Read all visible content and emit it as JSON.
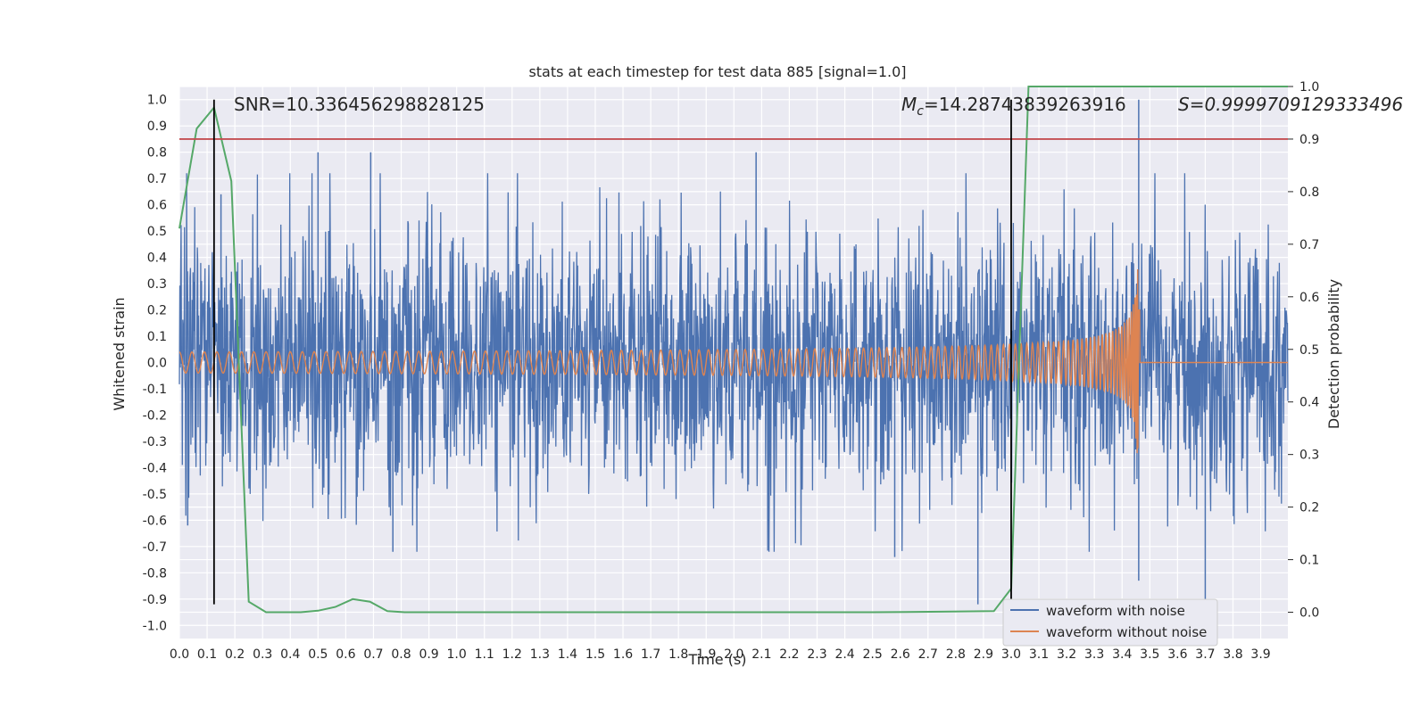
{
  "chart_data": {
    "type": "line",
    "title": "stats at each timestep for test data 885 [signal=1.0]",
    "xlabel": "Time (s)",
    "ylabel": "Whitened strain",
    "y2label": "Detection probability",
    "xlim": [
      0.0,
      3.998
    ],
    "ylim": [
      -1.05,
      1.05
    ],
    "y2lim": [
      -0.05,
      1.0
    ],
    "x_ticks": [
      0.0,
      0.1,
      0.2,
      0.3,
      0.4,
      0.5,
      0.6,
      0.7,
      0.8,
      0.9,
      1.0,
      1.1,
      1.2,
      1.3,
      1.4,
      1.5,
      1.6,
      1.7,
      1.8,
      1.9,
      2.0,
      2.1,
      2.2,
      2.3,
      2.4,
      2.5,
      2.6,
      2.7,
      2.8,
      2.9,
      3.0,
      3.1,
      3.2,
      3.3,
      3.4,
      3.5,
      3.6,
      3.7,
      3.8,
      3.9
    ],
    "x_tick_labels": [
      "0.0",
      "0.1",
      "0.2",
      "0.3",
      "0.4",
      "0.5",
      "0.6",
      "0.7",
      "0.8",
      "0.9",
      "1.0",
      "1.1",
      "1.2",
      "1.3",
      "1.4",
      "1.5",
      "1.6",
      "1.7",
      "1.8",
      "1.9",
      "2.0",
      "2.1",
      "2.2",
      "2.3",
      "2.4",
      "2.5",
      "2.6",
      "2.7",
      "2.8",
      "2.9",
      "3.0",
      "3.1",
      "3.2",
      "3.3",
      "3.4",
      "3.5",
      "3.6",
      "3.7",
      "3.8",
      "3.9"
    ],
    "y_ticks": [
      1.0,
      0.9,
      0.8,
      0.7,
      0.6,
      0.5,
      0.4,
      0.3,
      0.2,
      0.1,
      0.0,
      -0.1,
      -0.2,
      -0.3,
      -0.4,
      -0.5,
      -0.6,
      -0.7,
      -0.8,
      -0.9,
      -1.0
    ],
    "y_tick_labels": [
      "1.0",
      "0.9",
      "0.8",
      "0.7",
      "0.6",
      "0.5",
      "0.4",
      "0.3",
      "0.2",
      "0.1",
      "0.0",
      "-0.1",
      "-0.2",
      "-0.3",
      "-0.4",
      "-0.5",
      "-0.6",
      "-0.7",
      "-0.8",
      "-0.9",
      "-1.0"
    ],
    "y2_ticks": [
      1.0,
      0.9,
      0.8,
      0.7,
      0.6,
      0.5,
      0.4,
      0.3,
      0.2,
      0.1,
      0.0
    ],
    "y2_tick_labels": [
      "1.0",
      "0.9",
      "0.8",
      "0.7",
      "0.6",
      "0.5",
      "0.4",
      "0.3",
      "0.2",
      "0.1",
      "0.0"
    ],
    "grid": true,
    "legend_position": "bottom-right",
    "annotations": {
      "snr": "SNR=10.336456298828125",
      "mc_symbol": "M",
      "mc_subscript": "c",
      "mc_value": "=14.28743839263916",
      "s": "S=0.9999709129333496"
    },
    "threshold_line": {
      "axis": "y2",
      "value": 0.9,
      "color": "#c44e52"
    },
    "vertical_markers": [
      {
        "x": 0.125,
        "ymin": -0.92,
        "ymax": 1.0
      },
      {
        "x": 3.0,
        "ymin": -0.92,
        "ymax": 1.0
      }
    ],
    "series": [
      {
        "name": "waveform with noise",
        "color": "#4c72b0",
        "axis": "y",
        "description_values": {
          "amplitude_typical": 0.4,
          "max": 1.0,
          "min": -0.93,
          "sample_rate": 2048
        },
        "spikes": [
          {
            "x": 0.5,
            "y": 0.8
          },
          {
            "x": 0.69,
            "y": 0.8
          },
          {
            "x": 2.08,
            "y": 0.8
          },
          {
            "x": 3.46,
            "y": 1.0
          },
          {
            "x": 3.46,
            "y": -0.83
          },
          {
            "x": 2.88,
            "y": -0.92
          },
          {
            "x": 3.7,
            "y": -0.92
          },
          {
            "x": 0.77,
            "y": -0.72
          },
          {
            "x": 2.58,
            "y": -0.74
          },
          {
            "x": 0.15,
            "y": 0.64
          },
          {
            "x": 0.03,
            "y": -0.62
          }
        ]
      },
      {
        "name": "waveform without noise",
        "color": "#dd8452",
        "axis": "y",
        "chirp": {
          "amplitude_start": 0.02,
          "amplitude_peak": 0.42,
          "merger_time": 3.46,
          "freq_start_hz": 22,
          "freq_end_hz": 160
        }
      },
      {
        "name": "",
        "color": "#55a868",
        "axis": "y2",
        "x": [
          0.0,
          0.0625,
          0.125,
          0.1875,
          0.25,
          0.3125,
          0.375,
          0.4375,
          0.5,
          0.5625,
          0.625,
          0.6875,
          0.75,
          0.8125,
          0.875,
          1.0,
          1.25,
          1.5,
          1.75,
          2.0,
          2.25,
          2.5,
          2.75,
          2.9375,
          3.0,
          3.0625,
          3.125,
          3.25,
          3.5,
          3.75,
          3.998
        ],
        "values": [
          0.73,
          0.92,
          0.96,
          0.82,
          0.02,
          0.0,
          0.0,
          0.0,
          0.003,
          0.01,
          0.025,
          0.02,
          0.002,
          0.0,
          0.0,
          0.0,
          0.0,
          0.0,
          0.0,
          0.0,
          0.0,
          0.0,
          0.001,
          0.002,
          0.045,
          1.0,
          1.0,
          1.0,
          1.0,
          1.0,
          1.0
        ]
      }
    ]
  }
}
